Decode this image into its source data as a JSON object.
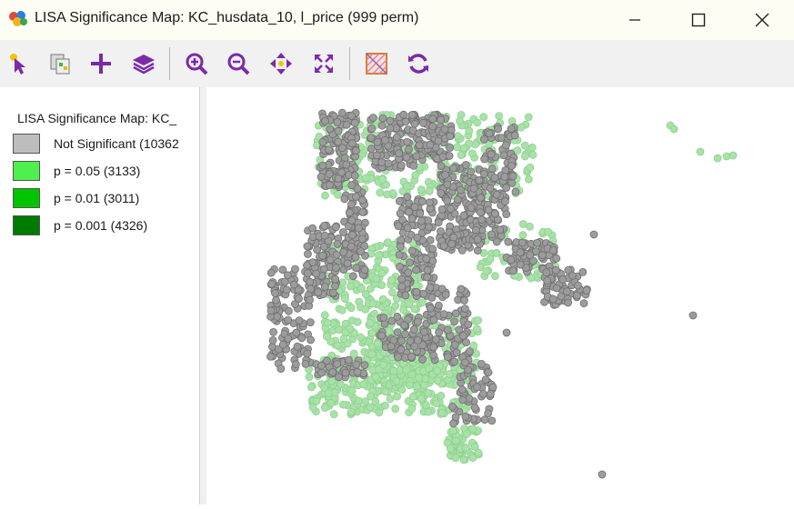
{
  "window": {
    "title": "LISA Significance Map: KC_husdata_10, l_price (999 perm)",
    "controls": [
      "minimize",
      "maximize",
      "close"
    ]
  },
  "toolbar": {
    "tools": [
      "select-pointer-icon",
      "copy-map-icon",
      "add-layer-icon",
      "layers-icon",
      "zoom-in-icon",
      "zoom-out-icon",
      "pan-icon",
      "full-extent-icon",
      "map-theme-icon",
      "refresh-icon"
    ]
  },
  "legend": {
    "title": "LISA Significance Map: KC_",
    "items": [
      {
        "label": "Not Significant (10362",
        "color": "#bdbdbd"
      },
      {
        "label": "p = 0.05 (3133)",
        "color": "#4df04d"
      },
      {
        "label": "p = 0.01 (3011)",
        "color": "#00c400"
      },
      {
        "label": "p = 0.001 (4326)",
        "color": "#007a00"
      }
    ]
  },
  "map": {
    "point_colors": {
      "not_significant": "#9c9c9c",
      "significant": "#a8e2a8"
    }
  }
}
